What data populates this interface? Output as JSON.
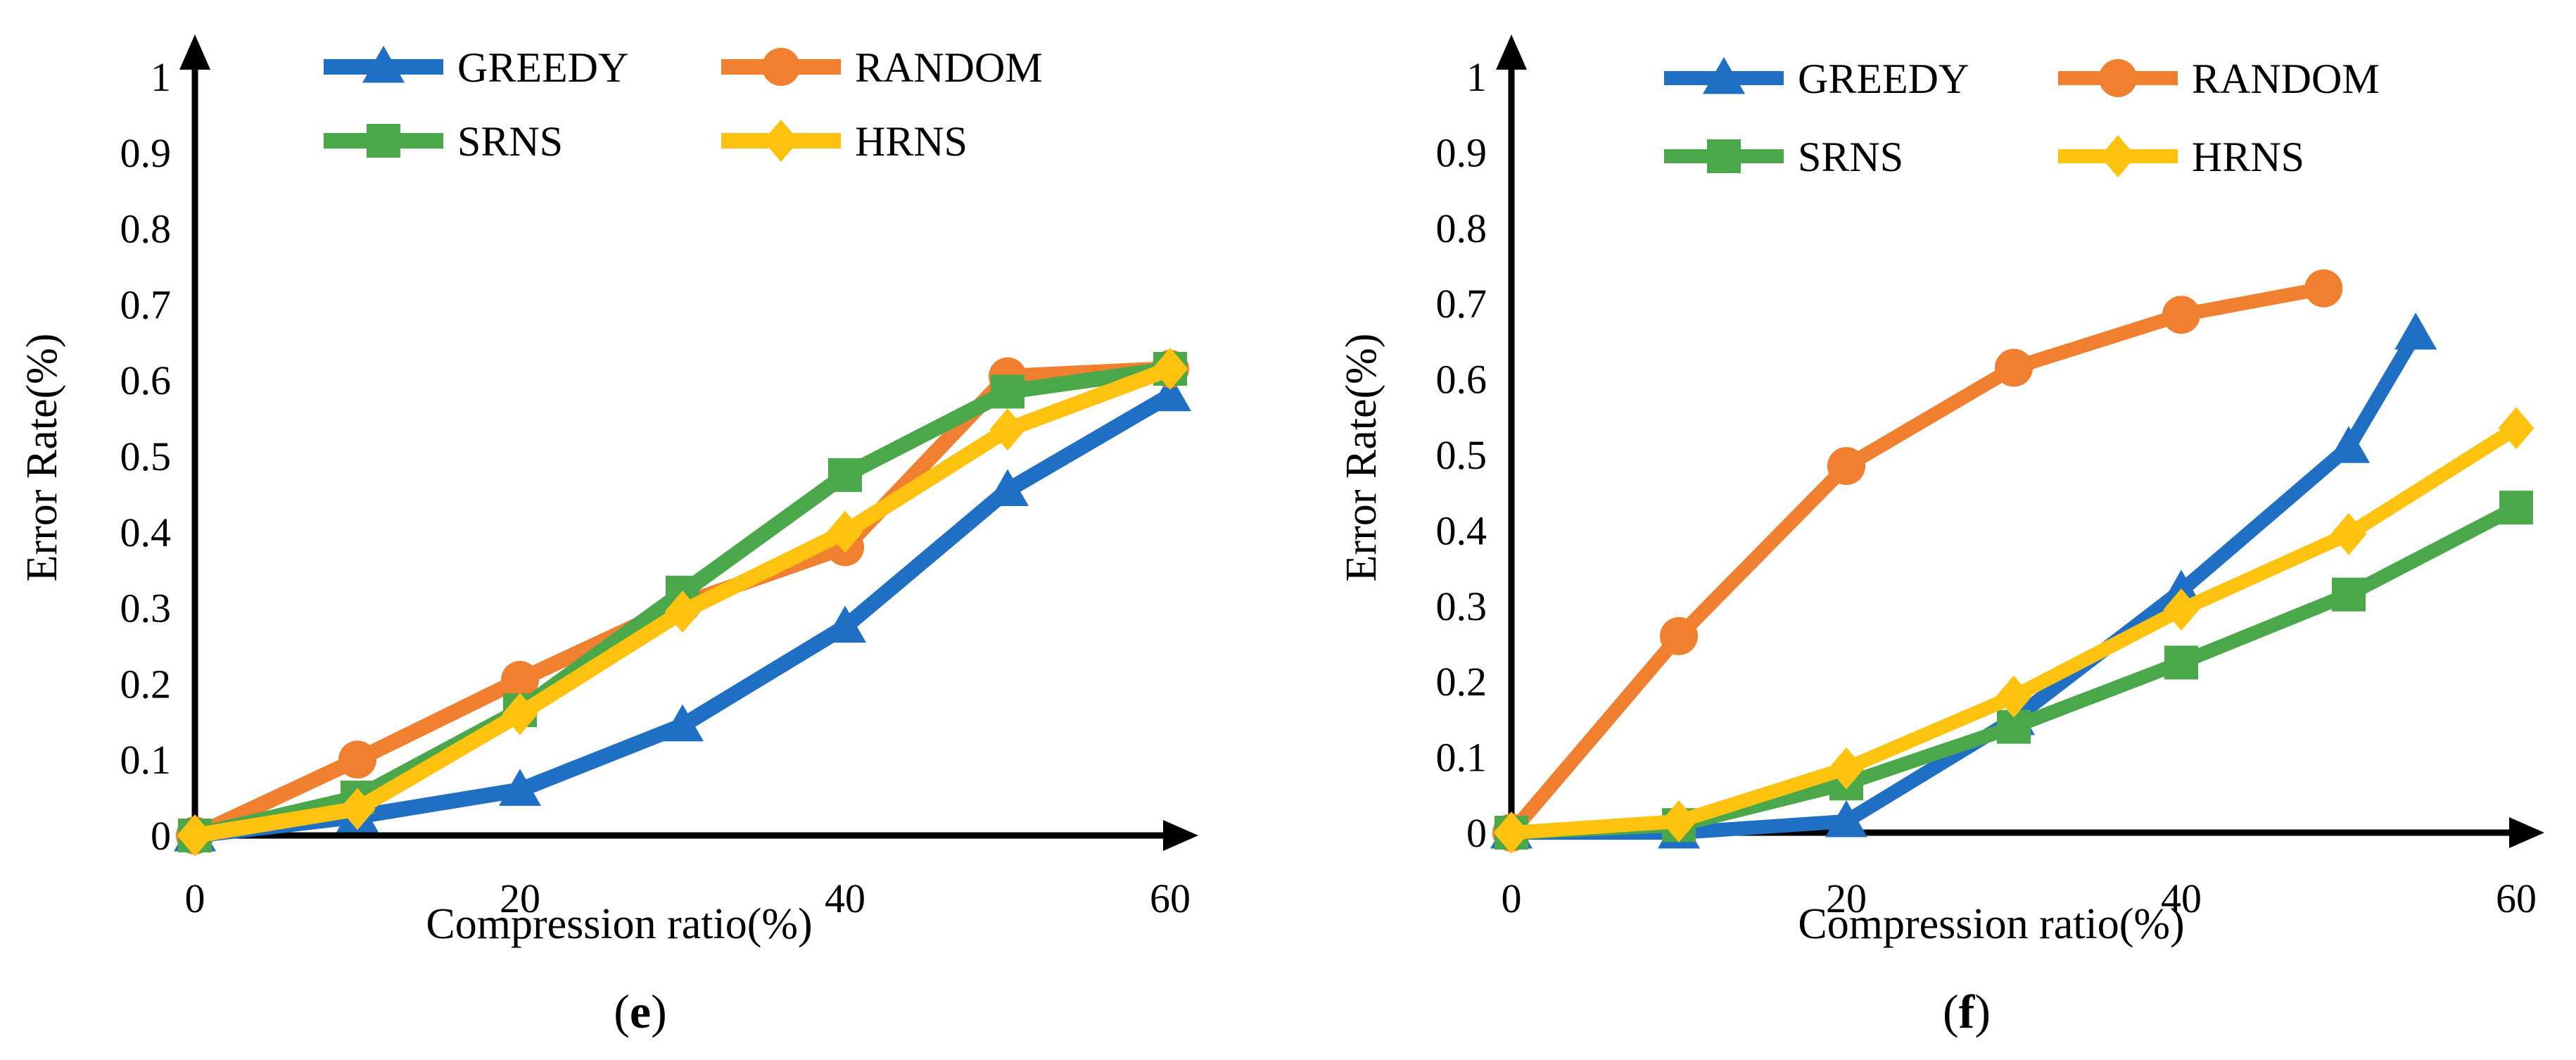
{
  "chart_data": [
    {
      "type": "line",
      "panel_label": "e",
      "xlabel": "Compression ratio(%)",
      "ylabel": "Error Rate(%)",
      "xlim": [
        0,
        60
      ],
      "ylim": [
        0,
        1
      ],
      "x_ticks": [
        "0",
        "20",
        "40",
        "60"
      ],
      "y_ticks": [
        "0",
        "0.1",
        "0.2",
        "0.3",
        "0.4",
        "0.5",
        "0.6",
        "0.7",
        "0.8",
        "0.9",
        "1"
      ],
      "legend_position": "top",
      "series": [
        {
          "name": "GREEDY",
          "color": "#1f6fc5",
          "marker": "triangle",
          "x": [
            0,
            10,
            20,
            30,
            40,
            50,
            60
          ],
          "y": [
            0,
            0.025,
            0.06,
            0.145,
            0.275,
            0.455,
            0.58
          ]
        },
        {
          "name": "RANDOM",
          "color": "#f07f2f",
          "marker": "circle",
          "x": [
            0,
            10,
            20,
            30,
            40,
            50,
            60
          ],
          "y": [
            0,
            0.1,
            0.205,
            0.305,
            0.38,
            0.605,
            0.615
          ]
        },
        {
          "name": "SRNS",
          "color": "#4aa84a",
          "marker": "square",
          "x": [
            0,
            10,
            20,
            30,
            40,
            50,
            60
          ],
          "y": [
            0,
            0.05,
            0.165,
            0.32,
            0.475,
            0.585,
            0.615
          ]
        },
        {
          "name": "HRNS",
          "color": "#ffc20f",
          "marker": "diamond",
          "x": [
            0,
            10,
            20,
            30,
            40,
            50,
            60
          ],
          "y": [
            0,
            0.035,
            0.16,
            0.295,
            0.4,
            0.535,
            0.615
          ]
        }
      ]
    },
    {
      "type": "line",
      "panel_label": "f",
      "xlabel": "Compression ratio(%)",
      "ylabel": "Error Rate(%)",
      "xlim": [
        0,
        60
      ],
      "ylim": [
        0,
        1
      ],
      "x_ticks": [
        "0",
        "20",
        "40",
        "60"
      ],
      "y_ticks": [
        "0",
        "0.1",
        "0.2",
        "0.3",
        "0.4",
        "0.5",
        "0.6",
        "0.7",
        "0.8",
        "0.9",
        "1"
      ],
      "legend_position": "top",
      "series": [
        {
          "name": "GREEDY",
          "color": "#1f6fc5",
          "marker": "triangle",
          "x": [
            0,
            10,
            20,
            30,
            40,
            50,
            54
          ],
          "y": [
            0,
            0,
            0.015,
            0.15,
            0.32,
            0.51,
            0.66
          ]
        },
        {
          "name": "RANDOM",
          "color": "#f07f2f",
          "marker": "circle",
          "x": [
            0,
            10,
            20,
            30,
            40,
            48.5
          ],
          "y": [
            0,
            0.26,
            0.485,
            0.615,
            0.685,
            0.72
          ]
        },
        {
          "name": "SRNS",
          "color": "#4aa84a",
          "marker": "square",
          "x": [
            0,
            10,
            20,
            30,
            40,
            50,
            60
          ],
          "y": [
            0,
            0.01,
            0.065,
            0.14,
            0.225,
            0.315,
            0.43
          ]
        },
        {
          "name": "HRNS",
          "color": "#ffc20f",
          "marker": "diamond",
          "x": [
            0,
            10,
            20,
            30,
            40,
            50,
            60
          ],
          "y": [
            0,
            0.015,
            0.085,
            0.18,
            0.295,
            0.395,
            0.535
          ]
        }
      ]
    }
  ]
}
